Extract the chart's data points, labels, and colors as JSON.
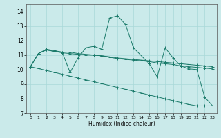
{
  "xlabel": "Humidex (Indice chaleur)",
  "background_color": "#caeaea",
  "grid_color": "#a8d8d8",
  "line_color": "#1a7a6a",
  "xlim": [
    -0.5,
    23.5
  ],
  "ylim": [
    7,
    14.5
  ],
  "xticks": [
    0,
    1,
    2,
    3,
    4,
    5,
    6,
    7,
    8,
    9,
    10,
    11,
    12,
    13,
    14,
    15,
    16,
    17,
    18,
    19,
    20,
    21,
    22,
    23
  ],
  "yticks": [
    7,
    8,
    9,
    10,
    11,
    12,
    13,
    14
  ],
  "series": [
    {
      "x": [
        0,
        1,
        2,
        3,
        4,
        5,
        6,
        7,
        8,
        9,
        10,
        11,
        12,
        13,
        15,
        16,
        17,
        18,
        19,
        20,
        21,
        22,
        23
      ],
      "y": [
        10.2,
        11.1,
        11.4,
        11.3,
        11.2,
        9.8,
        10.8,
        11.5,
        11.6,
        11.4,
        13.55,
        13.7,
        13.1,
        11.5,
        10.4,
        9.5,
        11.5,
        10.8,
        10.25,
        10.05,
        10.0,
        8.1,
        7.5
      ]
    },
    {
      "x": [
        0,
        1,
        2,
        3,
        4,
        5,
        6,
        7,
        8,
        9,
        10,
        11,
        12,
        13,
        14,
        15,
        16,
        17,
        18,
        19,
        20,
        21,
        22,
        23
      ],
      "y": [
        10.2,
        11.1,
        11.35,
        11.25,
        11.2,
        11.2,
        11.1,
        11.05,
        11.0,
        10.95,
        10.85,
        10.75,
        10.7,
        10.65,
        10.6,
        10.55,
        10.45,
        10.4,
        10.35,
        10.25,
        10.2,
        10.15,
        10.1,
        10.05
      ]
    },
    {
      "x": [
        0,
        1,
        2,
        3,
        4,
        5,
        6,
        7,
        8,
        9,
        10,
        11,
        12,
        13,
        14,
        15,
        16,
        17,
        18,
        19,
        20,
        21,
        22,
        23
      ],
      "y": [
        10.2,
        11.1,
        11.35,
        11.25,
        11.15,
        11.1,
        11.05,
        11.0,
        10.98,
        10.95,
        10.88,
        10.8,
        10.75,
        10.7,
        10.65,
        10.6,
        10.55,
        10.5,
        10.45,
        10.4,
        10.35,
        10.3,
        10.25,
        10.2
      ]
    },
    {
      "x": [
        0,
        1,
        2,
        3,
        4,
        5,
        6,
        7,
        8,
        9,
        10,
        11,
        12,
        13,
        14,
        15,
        16,
        17,
        18,
        19,
        20,
        21,
        22,
        23
      ],
      "y": [
        10.2,
        10.07,
        9.94,
        9.81,
        9.68,
        9.55,
        9.42,
        9.29,
        9.16,
        9.03,
        8.9,
        8.77,
        8.64,
        8.51,
        8.38,
        8.25,
        8.12,
        7.99,
        7.86,
        7.73,
        7.6,
        7.5,
        7.5,
        7.5
      ]
    }
  ]
}
